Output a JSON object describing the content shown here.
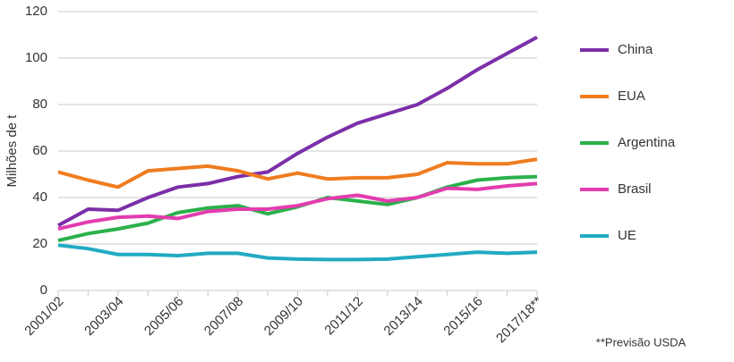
{
  "chart_data": {
    "type": "line",
    "y_label": "Milhões de t",
    "annotation": "**Previsão USDA",
    "categories": [
      "2001/02",
      null,
      "2003/04",
      null,
      "2005/06",
      null,
      "2007/08",
      null,
      "2009/10",
      null,
      "2011/12",
      null,
      "2013/14",
      null,
      "2015/16",
      null,
      "2017/18**"
    ],
    "series": [
      {
        "name": "China",
        "color": "#7b2fa8",
        "values": [
          28,
          35,
          34.5,
          40,
          44.5,
          46,
          49,
          51,
          59,
          66,
          72,
          76,
          80,
          87,
          95,
          102,
          109
        ]
      },
      {
        "name": "EUA",
        "color": "#f07c1e",
        "values": [
          51,
          47.5,
          44.5,
          51.5,
          52.5,
          53.5,
          51.5,
          48,
          50.5,
          48,
          48.5,
          48.5,
          50,
          55,
          54.5,
          54.5,
          56.5
        ]
      },
      {
        "name": "Argentina",
        "color": "#2bb04a",
        "values": [
          21.5,
          24.5,
          26.5,
          29,
          33.5,
          35.5,
          36.5,
          33,
          36,
          40,
          38.5,
          37,
          40,
          44.5,
          47.5,
          48.5,
          49
        ]
      },
      {
        "name": "Brasil",
        "color": "#e33cae",
        "values": [
          26.5,
          29.5,
          31.5,
          32,
          31,
          34,
          35,
          35,
          36.5,
          39.5,
          41,
          38.5,
          40,
          44,
          43.5,
          45,
          46
        ]
      },
      {
        "name": "UE",
        "color": "#21aac4",
        "values": [
          19.5,
          18,
          15.5,
          15.5,
          15,
          16,
          16,
          14,
          13.5,
          13.3,
          13.3,
          13.5,
          14.5,
          15.5,
          16.5,
          16,
          16.5
        ]
      }
    ],
    "ylim": [
      0,
      120
    ],
    "yticks": [
      0,
      20,
      40,
      60,
      80,
      100,
      120
    ],
    "grid": true,
    "legend": "right"
  }
}
